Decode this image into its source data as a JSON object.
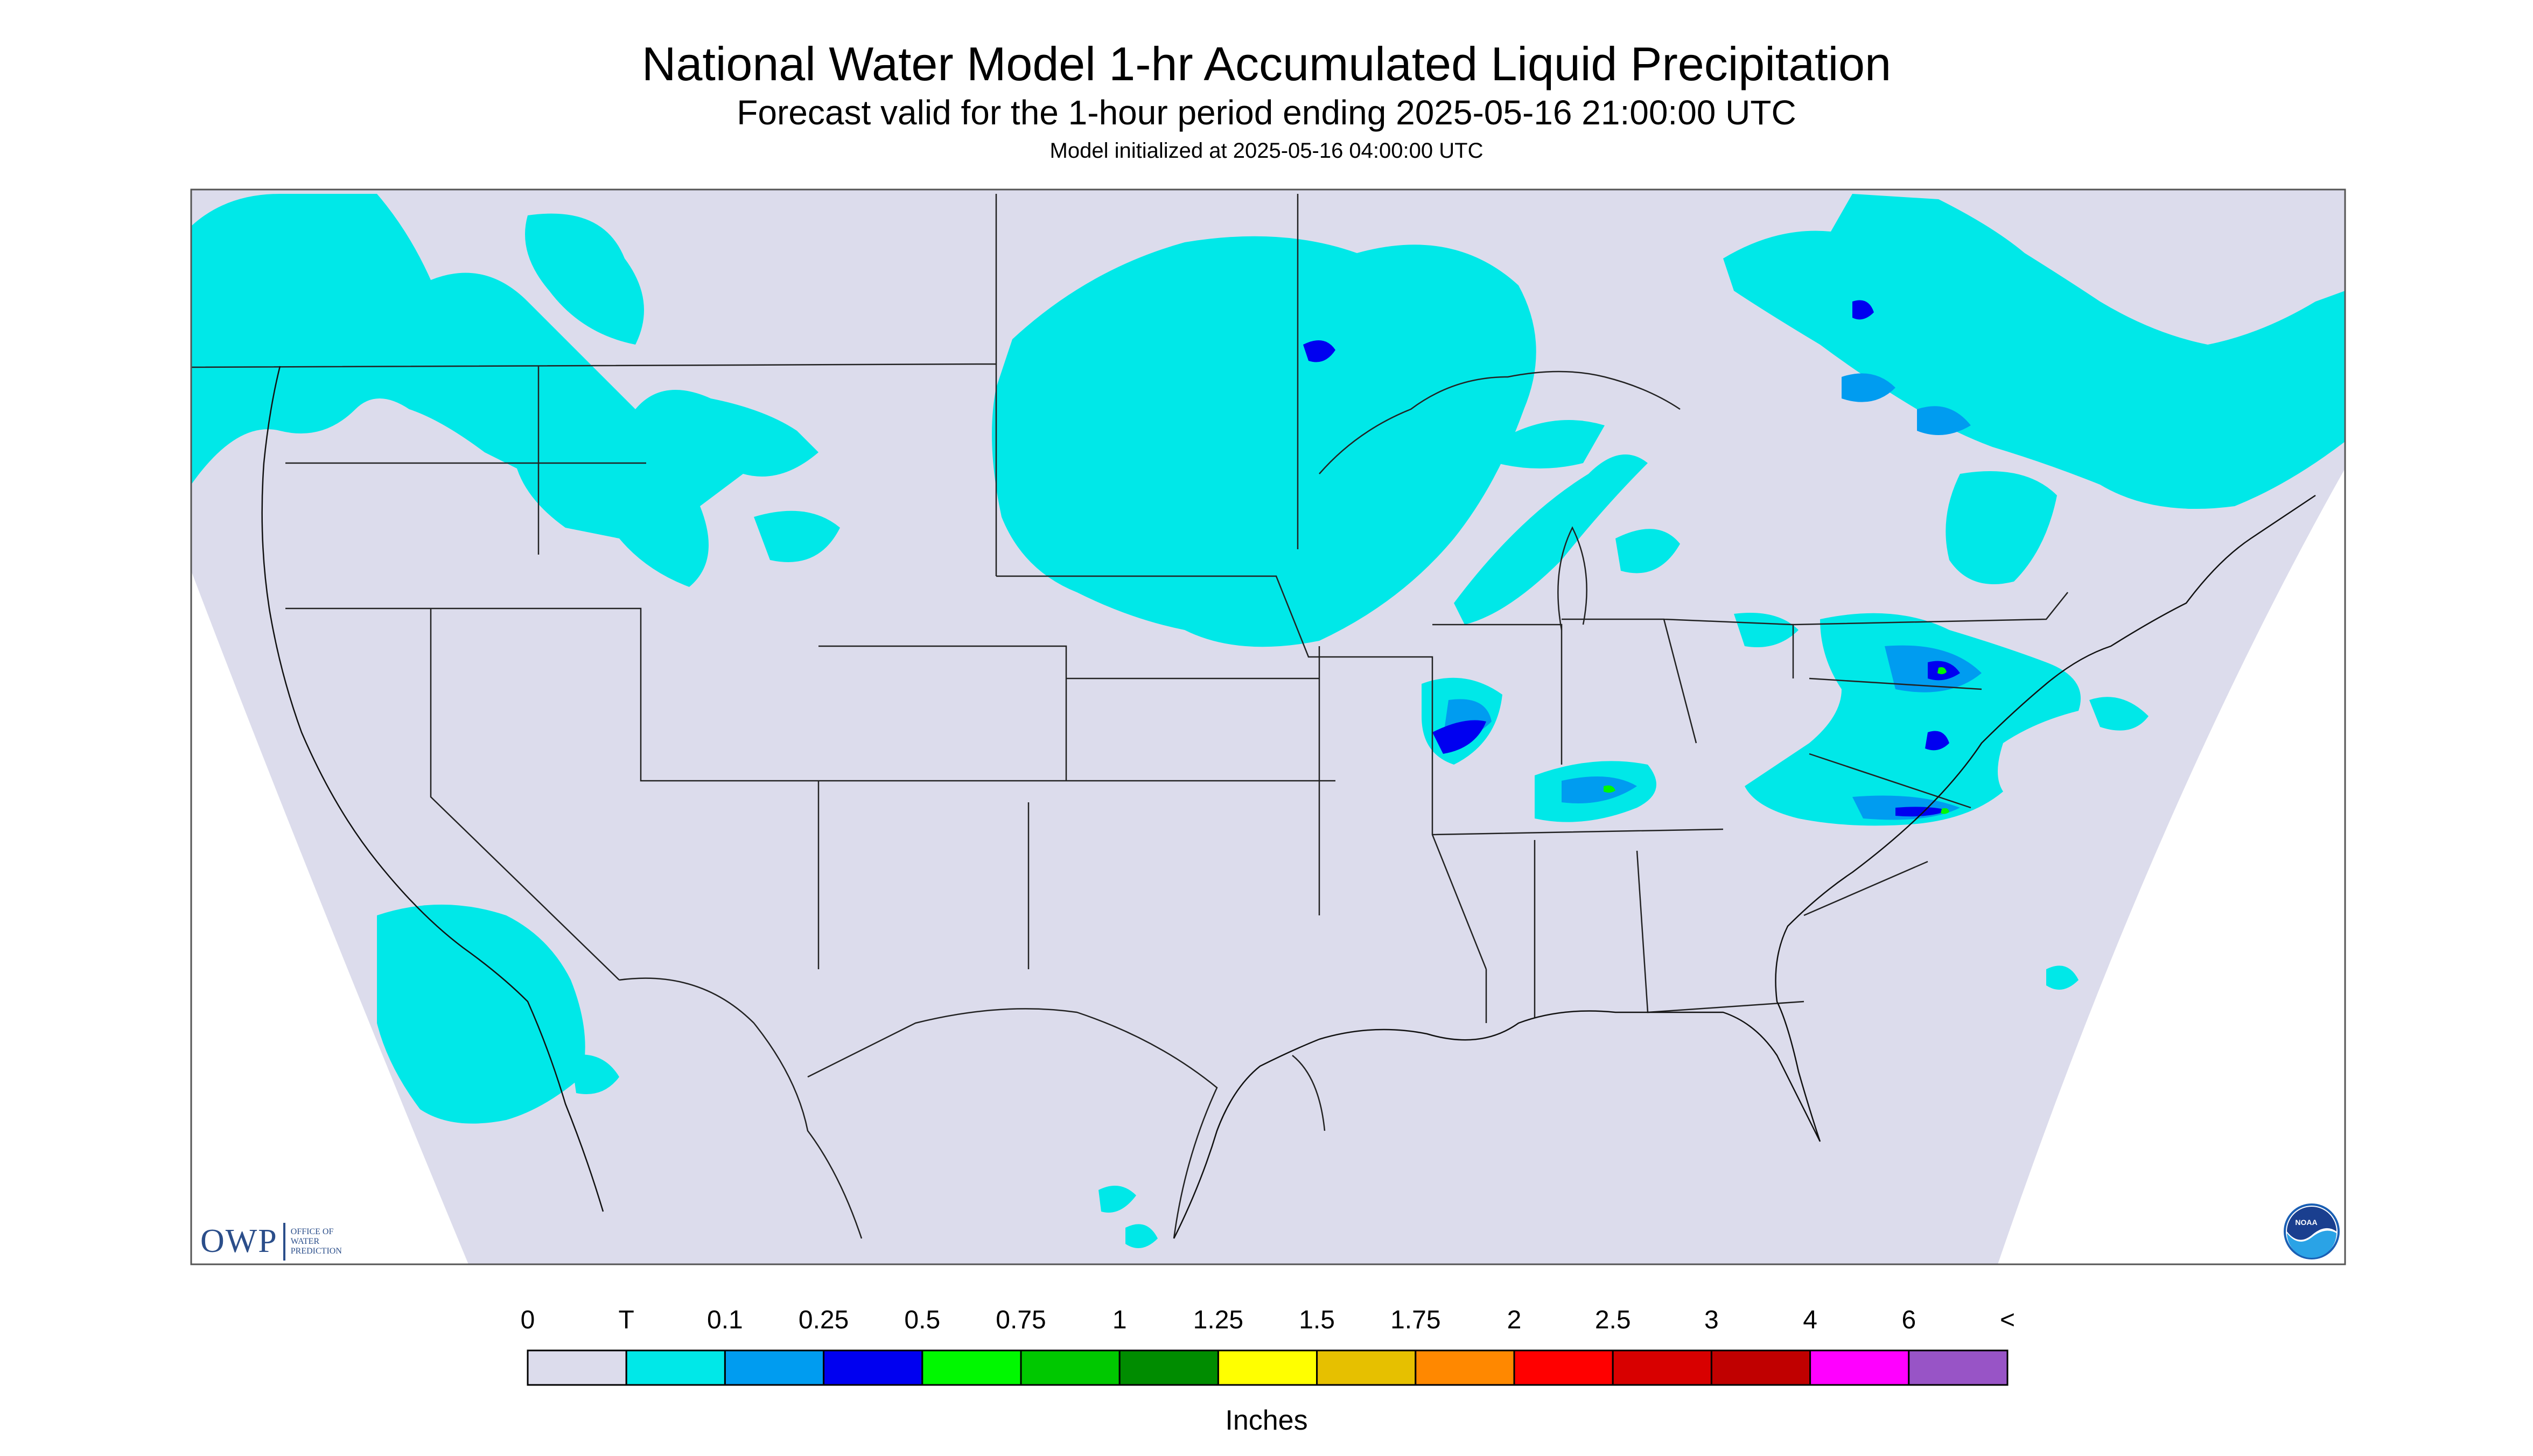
{
  "header": {
    "title": "National Water Model 1-hr Accumulated Liquid Precipitation",
    "subtitle": "Forecast valid for the 1-hour period ending 2025-05-16 21:00:00 UTC",
    "init_line": "Model initialized at 2025-05-16 04:00:00 UTC"
  },
  "map": {
    "background_color": "#dcdcec",
    "outside_color": "#ffffff",
    "boundary_color": "#222222",
    "precip_regions": [
      {
        "name": "pacific-northwest",
        "category": "T"
      },
      {
        "name": "northern-rockies",
        "category": "T"
      },
      {
        "name": "upper-midwest-swirl",
        "category": "T"
      },
      {
        "name": "lake-michigan-band",
        "category": "T"
      },
      {
        "name": "ontario-quebec",
        "category": "T"
      },
      {
        "name": "new-england",
        "category": "T"
      },
      {
        "name": "mid-atlantic",
        "category": "0.25"
      },
      {
        "name": "ohio-valley",
        "category": "0.5"
      },
      {
        "name": "southern-california-coast",
        "category": "T"
      }
    ]
  },
  "logos": {
    "owp_text": "OWP",
    "owp_small_1": "OFFICE OF",
    "owp_small_2": "WATER",
    "owp_small_3": "PREDICTION",
    "noaa_text": "NOAA"
  },
  "legend": {
    "labels": [
      "0",
      "T",
      "0.1",
      "0.25",
      "0.5",
      "0.75",
      "1",
      "1.25",
      "1.5",
      "1.75",
      "2",
      "2.5",
      "3",
      "4",
      "6",
      "<"
    ],
    "colors": [
      "#dcdcec",
      "#00e8e8",
      "#009cf0",
      "#0000f0",
      "#00f800",
      "#00c800",
      "#008c00",
      "#ffff00",
      "#e6c000",
      "#ff8800",
      "#ff0000",
      "#d80000",
      "#c00000",
      "#ff00ff",
      "#9854c6"
    ],
    "unit": "Inches"
  }
}
